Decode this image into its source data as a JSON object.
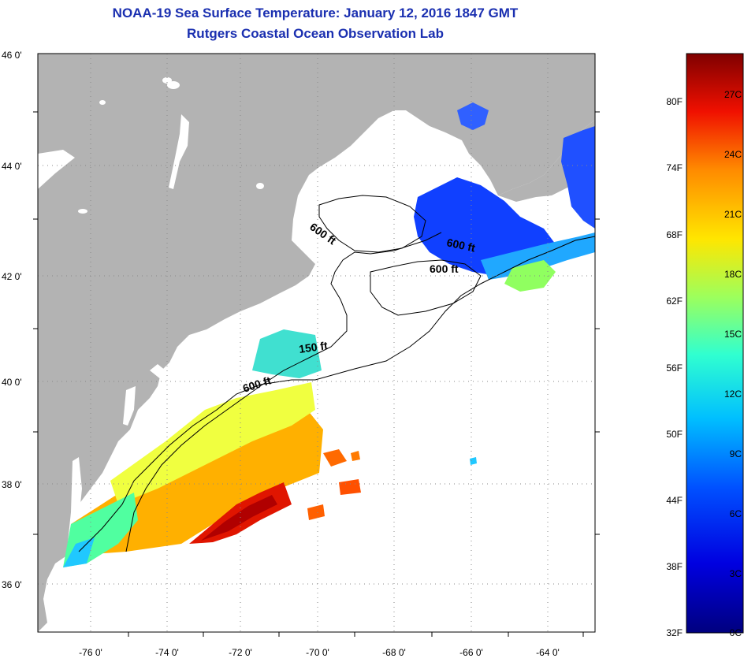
{
  "header": {
    "title": "NOAA-19 Sea Surface Temperature:  January 12, 2016 1847 GMT",
    "subtitle": "Rutgers Coastal Ocean Observation Lab"
  },
  "map": {
    "lat_labels": [
      "46 0'",
      "44 0'",
      "42 0'",
      "40 0'",
      "38 0'",
      "36 0'"
    ],
    "lon_labels": [
      "-76 0'",
      "-74 0'",
      "-72 0'",
      "-70 0'",
      "-68 0'",
      "-66 0'",
      "-64 0'"
    ],
    "contour_labels": [
      "600 ft",
      "600 ft",
      "600 ft",
      "150 ft",
      "600 ft"
    ],
    "colors": {
      "land": "#b3b3b3",
      "ocean_nodata": "#ffffff",
      "graticule": "#888888"
    }
  },
  "colorbar": {
    "fahrenheit_labels": [
      "80F",
      "74F",
      "68F",
      "62F",
      "56F",
      "50F",
      "44F",
      "38F",
      "32F"
    ],
    "celsius_labels": [
      "27C",
      "24C",
      "21C",
      "18C",
      "15C",
      "12C",
      "9C",
      "6C",
      "3C",
      "0C"
    ]
  }
}
